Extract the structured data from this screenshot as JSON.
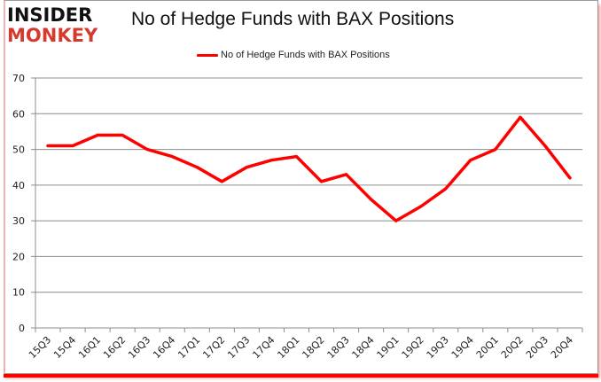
{
  "logo": {
    "line1": "INSIDER",
    "line2": "MONKEY"
  },
  "chart_data": {
    "type": "line",
    "title": "No of Hedge Funds with BAX Positions",
    "xlabel": "",
    "ylabel": "",
    "ylim": [
      0,
      70
    ],
    "yticks": [
      0,
      10,
      20,
      30,
      40,
      50,
      60,
      70
    ],
    "grid": true,
    "legend_position": "top",
    "categories": [
      "15Q3",
      "15Q4",
      "16Q1",
      "16Q2",
      "16Q3",
      "16Q4",
      "17Q1",
      "17Q2",
      "17Q3",
      "17Q4",
      "18Q1",
      "18Q2",
      "18Q3",
      "18Q4",
      "19Q1",
      "19Q2",
      "19Q3",
      "19Q4",
      "20Q1",
      "20Q2",
      "20Q3",
      "20Q4"
    ],
    "series": [
      {
        "name": "No of Hedge Funds with BAX Positions",
        "color": "#ff0000",
        "values": [
          51,
          51,
          54,
          54,
          50,
          48,
          45,
          41,
          45,
          47,
          48,
          41,
          43,
          36,
          30,
          34,
          39,
          47,
          50,
          59,
          51,
          42
        ]
      }
    ]
  }
}
